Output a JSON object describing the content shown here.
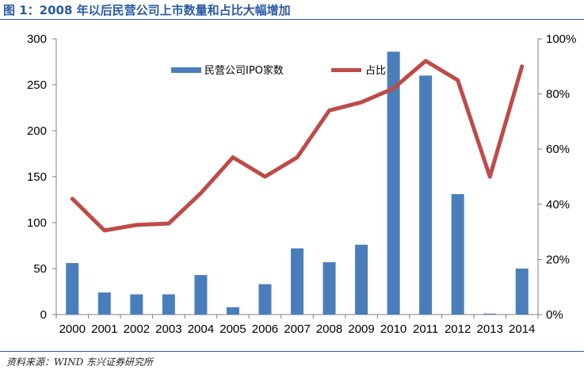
{
  "figure": {
    "title": "图 1：2008 年以后民营公司上市数量和占比大幅增加",
    "source": "资料来源：WIND 东兴证券研究所"
  },
  "chart_data": {
    "type": "bar+line",
    "categories": [
      "2000",
      "2001",
      "2002",
      "2003",
      "2004",
      "2005",
      "2006",
      "2007",
      "2008",
      "2009",
      "2010",
      "2011",
      "2012",
      "2013",
      "2014"
    ],
    "series": [
      {
        "name": "民营公司IPO家数",
        "type": "bar",
        "axis": "left",
        "color": "#4a7ebb",
        "values": [
          56,
          24,
          22,
          22,
          43,
          8,
          33,
          72,
          57,
          76,
          286,
          260,
          131,
          1,
          50
        ]
      },
      {
        "name": "占比",
        "type": "line",
        "axis": "right",
        "color": "#be4b48",
        "values": [
          0.42,
          0.305,
          0.325,
          0.33,
          0.44,
          0.57,
          0.5,
          0.57,
          0.74,
          0.77,
          0.82,
          0.92,
          0.85,
          0.5,
          0.9
        ]
      }
    ],
    "y_left": {
      "min": 0,
      "max": 300,
      "ticks": [
        "0",
        "50",
        "100",
        "150",
        "200",
        "250",
        "300"
      ]
    },
    "y_right": {
      "min": 0,
      "max": 1,
      "ticks": [
        "0%",
        "20%",
        "40%",
        "60%",
        "80%",
        "100%"
      ]
    },
    "legend": {
      "placement": "top-center"
    },
    "grid": false
  }
}
